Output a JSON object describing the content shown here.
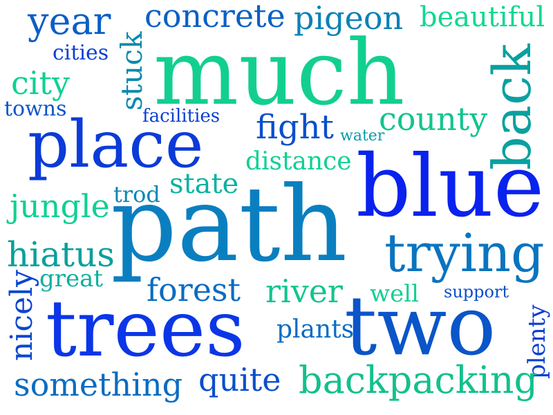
{
  "palette": {
    "royal_blue": "#0b3bd8",
    "deep_blue": "#0a2ff0",
    "steel_blue": "#0a78b8",
    "teal": "#0a9aa0",
    "mint": "#0fd38e",
    "sea_green": "#13c08c"
  },
  "words": [
    {
      "key": "much",
      "text": "much"
    },
    {
      "key": "path",
      "text": "path"
    },
    {
      "key": "trees",
      "text": "trees"
    },
    {
      "key": "two",
      "text": "two"
    },
    {
      "key": "blue",
      "text": "blue"
    },
    {
      "key": "place",
      "text": "place"
    },
    {
      "key": "back",
      "text": "back"
    },
    {
      "key": "trying",
      "text": "trying"
    },
    {
      "key": "year",
      "text": "year"
    },
    {
      "key": "concrete",
      "text": "concrete"
    },
    {
      "key": "pigeon",
      "text": "pigeon"
    },
    {
      "key": "beautiful",
      "text": "beautiful"
    },
    {
      "key": "cities",
      "text": "cities"
    },
    {
      "key": "city",
      "text": "city"
    },
    {
      "key": "towns",
      "text": "towns"
    },
    {
      "key": "stuck",
      "text": "stuck"
    },
    {
      "key": "facilities",
      "text": "facilities"
    },
    {
      "key": "county",
      "text": "county"
    },
    {
      "key": "fight",
      "text": "fight"
    },
    {
      "key": "water",
      "text": "water"
    },
    {
      "key": "distance",
      "text": "distance"
    },
    {
      "key": "state",
      "text": "state"
    },
    {
      "key": "trod",
      "text": "trod"
    },
    {
      "key": "jungle",
      "text": "jungle"
    },
    {
      "key": "hiatus",
      "text": "hiatus"
    },
    {
      "key": "great",
      "text": "great"
    },
    {
      "key": "nicely",
      "text": "nicely"
    },
    {
      "key": "forest",
      "text": "forest"
    },
    {
      "key": "river",
      "text": "river"
    },
    {
      "key": "well",
      "text": "well"
    },
    {
      "key": "support",
      "text": "support"
    },
    {
      "key": "plenty",
      "text": "plenty"
    },
    {
      "key": "plants",
      "text": "plants"
    },
    {
      "key": "something",
      "text": "something"
    },
    {
      "key": "quite",
      "text": "quite"
    },
    {
      "key": "backpacking",
      "text": "backpacking"
    }
  ]
}
